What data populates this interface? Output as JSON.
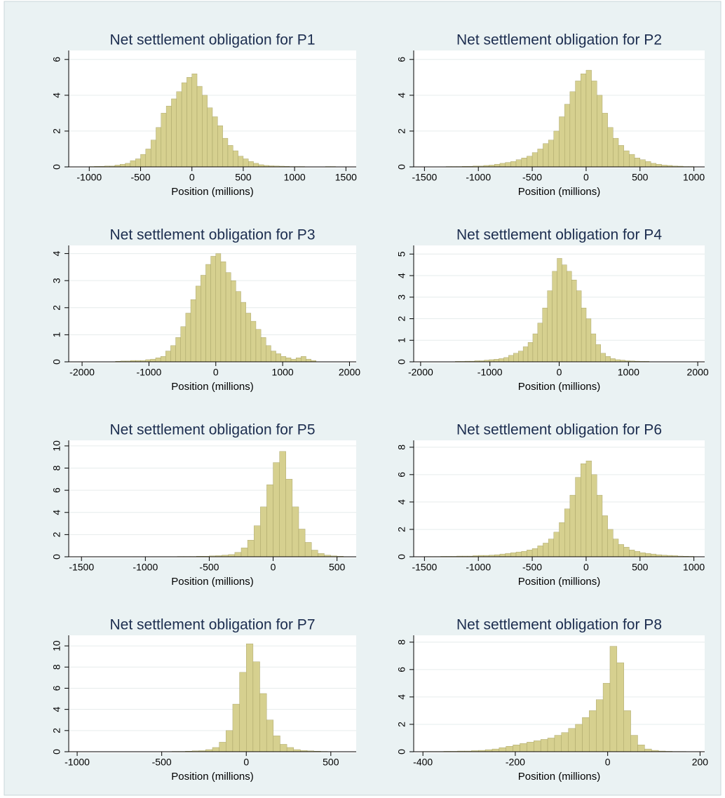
{
  "chart_data": [
    {
      "type": "histogram",
      "title": "Net settlement obligation for P1",
      "x_label": "Position (millions)",
      "color": "#d6d08f",
      "bins": [
        -1000,
        -950,
        -900,
        -850,
        -800,
        -750,
        -700,
        -650,
        -600,
        -550,
        -500,
        -450,
        -400,
        -350,
        -300,
        -250,
        -200,
        -150,
        -100,
        -50,
        0,
        50,
        100,
        150,
        200,
        250,
        300,
        350,
        400,
        450,
        500,
        550,
        600,
        650,
        700,
        750,
        800,
        850,
        900,
        950,
        1000,
        1050,
        1100,
        1150,
        1200,
        1250,
        1300,
        1350,
        1400,
        1450,
        1500
      ],
      "values": [
        0.02,
        0.03,
        0.03,
        0.05,
        0.05,
        0.1,
        0.15,
        0.2,
        0.35,
        0.45,
        0.7,
        1.0,
        1.5,
        2.2,
        3.0,
        3.4,
        3.8,
        4.2,
        4.7,
        5.0,
        5.2,
        4.5,
        4.0,
        3.3,
        2.8,
        2.3,
        1.6,
        1.2,
        0.9,
        0.6,
        0.45,
        0.3,
        0.2,
        0.12,
        0.08,
        0.06,
        0.05,
        0.04,
        0.03,
        0.02,
        0.02,
        0.02,
        0.01,
        0.01,
        0.01,
        0.01,
        0.02,
        0.02,
        0.01,
        0.01
      ],
      "xlim": [
        -1200,
        1600
      ],
      "ylim": [
        0,
        6.5
      ],
      "xticks": [
        -1000,
        -500,
        0,
        500,
        1000,
        1500
      ],
      "yticks": [
        0,
        2,
        4,
        6
      ],
      "grid": true
    },
    {
      "type": "histogram",
      "title": "Net settlement obligation for P2",
      "x_label": "Position (millions)",
      "color": "#d6d08f",
      "bins": [
        -1500,
        -1450,
        -1400,
        -1350,
        -1300,
        -1250,
        -1200,
        -1150,
        -1100,
        -1050,
        -1000,
        -950,
        -900,
        -850,
        -800,
        -750,
        -700,
        -650,
        -600,
        -550,
        -500,
        -450,
        -400,
        -350,
        -300,
        -250,
        -200,
        -150,
        -100,
        -50,
        0,
        50,
        100,
        150,
        200,
        250,
        300,
        350,
        400,
        450,
        500,
        550,
        600,
        650,
        700,
        750,
        800,
        850,
        900,
        950,
        1000
      ],
      "values": [
        0.01,
        0.01,
        0.01,
        0.01,
        0.02,
        0.02,
        0.02,
        0.03,
        0.03,
        0.05,
        0.05,
        0.08,
        0.1,
        0.15,
        0.2,
        0.25,
        0.3,
        0.4,
        0.5,
        0.6,
        0.8,
        1.0,
        1.3,
        1.5,
        2.0,
        2.8,
        3.5,
        4.2,
        4.8,
        5.2,
        5.4,
        4.8,
        4.0,
        3.0,
        2.2,
        1.6,
        1.2,
        0.9,
        0.7,
        0.5,
        0.4,
        0.3,
        0.2,
        0.15,
        0.1,
        0.08,
        0.05,
        0.04,
        0.02,
        0.02
      ],
      "xlim": [
        -1600,
        1100
      ],
      "ylim": [
        0,
        6.5
      ],
      "xticks": [
        -1500,
        -1000,
        -500,
        0,
        500,
        1000
      ],
      "yticks": [
        0,
        2,
        4,
        6
      ],
      "grid": true
    },
    {
      "type": "histogram",
      "title": "Net settlement obligation for P3",
      "x_label": "Position (millions)",
      "color": "#d6d08f",
      "bins": [
        -1500,
        -1425,
        -1350,
        -1275,
        -1200,
        -1125,
        -1050,
        -975,
        -900,
        -825,
        -750,
        -675,
        -600,
        -525,
        -450,
        -375,
        -300,
        -225,
        -150,
        -75,
        0,
        75,
        150,
        225,
        300,
        375,
        450,
        525,
        600,
        675,
        750,
        825,
        900,
        975,
        1050,
        1125,
        1200,
        1275,
        1350,
        1425,
        1500
      ],
      "values": [
        0.02,
        0.03,
        0.03,
        0.05,
        0.05,
        0.05,
        0.08,
        0.1,
        0.15,
        0.2,
        0.4,
        0.6,
        0.9,
        1.3,
        1.8,
        2.3,
        2.8,
        3.2,
        3.6,
        3.9,
        4.0,
        3.7,
        3.3,
        3.0,
        2.6,
        2.2,
        1.8,
        1.5,
        1.2,
        0.9,
        0.6,
        0.4,
        0.3,
        0.2,
        0.15,
        0.1,
        0.15,
        0.2,
        0.1,
        0.05
      ],
      "xlim": [
        -2200,
        2100
      ],
      "ylim": [
        0,
        4.3
      ],
      "xticks": [
        -2000,
        -1000,
        0,
        1000,
        2000
      ],
      "yticks": [
        0,
        1,
        2,
        3,
        4
      ],
      "grid": true
    },
    {
      "type": "histogram",
      "title": "Net settlement obligation for P4",
      "x_label": "Position (millions)",
      "color": "#d6d08f",
      "bins": [
        -1500,
        -1430,
        -1360,
        -1290,
        -1220,
        -1150,
        -1080,
        -1010,
        -940,
        -870,
        -800,
        -730,
        -660,
        -590,
        -520,
        -450,
        -380,
        -310,
        -240,
        -170,
        -100,
        -30,
        40,
        110,
        180,
        250,
        320,
        390,
        460,
        530,
        600,
        670,
        740,
        810,
        880,
        950,
        1020,
        1090,
        1160,
        1230,
        1300
      ],
      "values": [
        0.02,
        0.02,
        0.03,
        0.03,
        0.05,
        0.05,
        0.08,
        0.1,
        0.12,
        0.15,
        0.2,
        0.3,
        0.4,
        0.5,
        0.7,
        0.9,
        1.3,
        1.8,
        2.5,
        3.3,
        4.2,
        4.8,
        4.5,
        4.2,
        3.8,
        3.3,
        2.5,
        2.0,
        1.3,
        0.8,
        0.4,
        0.25,
        0.15,
        0.1,
        0.08,
        0.05,
        0.04,
        0.03,
        0.02,
        0.02
      ],
      "xlim": [
        -2100,
        2100
      ],
      "ylim": [
        0,
        5.4
      ],
      "xticks": [
        -2000,
        -1000,
        0,
        1000,
        2000
      ],
      "yticks": [
        0,
        1,
        2,
        3,
        4,
        5
      ],
      "grid": true
    },
    {
      "type": "histogram",
      "title": "Net settlement obligation for P5",
      "x_label": "Position (millions)",
      "color": "#d6d08f",
      "bins": [
        -1400,
        -1350,
        -1300,
        -1250,
        -1200,
        -1150,
        -1100,
        -1050,
        -1000,
        -950,
        -900,
        -850,
        -800,
        -750,
        -700,
        -650,
        -600,
        -550,
        -500,
        -450,
        -400,
        -350,
        -300,
        -250,
        -200,
        -150,
        -100,
        -50,
        0,
        50,
        100,
        150,
        200,
        250,
        300,
        350,
        400,
        450,
        500,
        550,
        600
      ],
      "values": [
        0.01,
        0.01,
        0.01,
        0.01,
        0.01,
        0.01,
        0.02,
        0.01,
        0.01,
        0.02,
        0.02,
        0.02,
        0.02,
        0.03,
        0.03,
        0.03,
        0.05,
        0.05,
        0.08,
        0.1,
        0.15,
        0.2,
        0.4,
        0.8,
        1.5,
        2.8,
        4.5,
        6.5,
        8.5,
        9.5,
        7.0,
        4.5,
        2.5,
        1.3,
        0.6,
        0.3,
        0.15,
        0.08,
        0.05,
        0.02
      ],
      "xlim": [
        -1600,
        650
      ],
      "ylim": [
        0,
        10.5
      ],
      "xticks": [
        -1500,
        -1000,
        -500,
        0,
        500
      ],
      "yticks": [
        0,
        2,
        4,
        6,
        8,
        10
      ],
      "grid": true
    },
    {
      "type": "histogram",
      "title": "Net settlement obligation for P6",
      "x_label": "Position (millions)",
      "color": "#d6d08f",
      "bins": [
        -1500,
        -1450,
        -1400,
        -1350,
        -1300,
        -1250,
        -1200,
        -1150,
        -1100,
        -1050,
        -1000,
        -950,
        -900,
        -850,
        -800,
        -750,
        -700,
        -650,
        -600,
        -550,
        -500,
        -450,
        -400,
        -350,
        -300,
        -250,
        -200,
        -150,
        -100,
        -50,
        0,
        50,
        100,
        150,
        200,
        250,
        300,
        350,
        400,
        450,
        500,
        550,
        600,
        650,
        700,
        750,
        800,
        850,
        900,
        950,
        1000
      ],
      "values": [
        0.02,
        0.02,
        0.02,
        0.03,
        0.03,
        0.03,
        0.05,
        0.05,
        0.05,
        0.08,
        0.1,
        0.1,
        0.12,
        0.15,
        0.2,
        0.25,
        0.3,
        0.35,
        0.4,
        0.5,
        0.6,
        0.8,
        1.0,
        1.3,
        1.8,
        2.5,
        3.5,
        4.5,
        5.8,
        6.8,
        7.0,
        6.0,
        4.5,
        3.0,
        2.0,
        1.3,
        0.9,
        0.7,
        0.5,
        0.4,
        0.3,
        0.25,
        0.2,
        0.15,
        0.12,
        0.1,
        0.08,
        0.05,
        0.04,
        0.03
      ],
      "xlim": [
        -1600,
        1100
      ],
      "ylim": [
        0,
        8.5
      ],
      "xticks": [
        -1500,
        -1000,
        -500,
        0,
        500,
        1000
      ],
      "yticks": [
        0,
        2,
        4,
        6,
        8
      ],
      "grid": true
    },
    {
      "type": "histogram",
      "title": "Net settlement obligation for P7",
      "x_label": "Position (millions)",
      "color": "#d6d08f",
      "bins": [
        -1000,
        -960,
        -920,
        -880,
        -840,
        -800,
        -760,
        -720,
        -680,
        -640,
        -600,
        -560,
        -520,
        -480,
        -440,
        -400,
        -360,
        -320,
        -280,
        -240,
        -200,
        -160,
        -120,
        -80,
        -40,
        0,
        40,
        80,
        120,
        160,
        200,
        240,
        280,
        320,
        360,
        400,
        440,
        480,
        520,
        560,
        600
      ],
      "values": [
        0.01,
        0.01,
        0.01,
        0.01,
        0.01,
        0.01,
        0.01,
        0.01,
        0.01,
        0.01,
        0.01,
        0.02,
        0.02,
        0.02,
        0.03,
        0.03,
        0.05,
        0.08,
        0.1,
        0.2,
        0.4,
        0.9,
        2.0,
        4.5,
        7.5,
        10.2,
        8.5,
        5.5,
        3.0,
        1.5,
        0.7,
        0.4,
        0.2,
        0.12,
        0.08,
        0.05,
        0.03,
        0.02,
        0.01,
        0.01
      ],
      "xlim": [
        -1050,
        650
      ],
      "ylim": [
        0,
        11
      ],
      "xticks": [
        -1000,
        -500,
        0,
        500
      ],
      "yticks": [
        0,
        2,
        4,
        6,
        8,
        10
      ],
      "grid": true
    },
    {
      "type": "histogram",
      "title": "Net settlement obligation for P8",
      "x_label": "Position (millions)",
      "color": "#d6d08f",
      "bins": [
        -400,
        -385,
        -370,
        -355,
        -340,
        -325,
        -310,
        -295,
        -280,
        -265,
        -250,
        -235,
        -220,
        -205,
        -190,
        -175,
        -160,
        -145,
        -130,
        -115,
        -100,
        -85,
        -70,
        -55,
        -40,
        -25,
        -10,
        5,
        20,
        35,
        50,
        65,
        80,
        95,
        110,
        125,
        140,
        155,
        170,
        185,
        200
      ],
      "values": [
        0.02,
        0.02,
        0.02,
        0.03,
        0.03,
        0.05,
        0.05,
        0.08,
        0.1,
        0.15,
        0.2,
        0.3,
        0.4,
        0.5,
        0.6,
        0.7,
        0.8,
        0.9,
        1.0,
        1.2,
        1.4,
        1.7,
        2.0,
        2.5,
        3.0,
        3.8,
        5.0,
        7.7,
        6.5,
        3.0,
        1.2,
        0.5,
        0.2,
        0.1,
        0.05,
        0.03,
        0.02,
        0.02,
        0.01,
        0.01
      ],
      "xlim": [
        -420,
        210
      ],
      "ylim": [
        0,
        8.5
      ],
      "xticks": [
        -400,
        -200,
        0,
        200
      ],
      "yticks": [
        0,
        2,
        4,
        6,
        8
      ],
      "grid": true
    }
  ]
}
